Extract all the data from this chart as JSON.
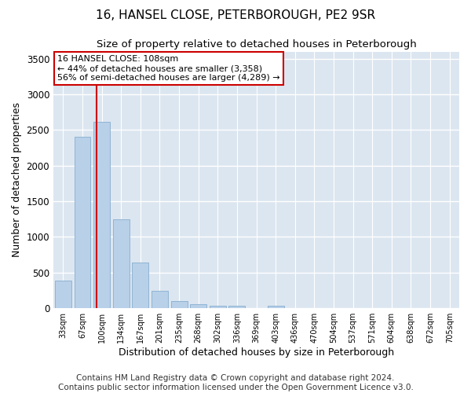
{
  "title": "16, HANSEL CLOSE, PETERBOROUGH, PE2 9SR",
  "subtitle": "Size of property relative to detached houses in Peterborough",
  "xlabel": "Distribution of detached houses by size in Peterborough",
  "ylabel": "Number of detached properties",
  "categories": [
    "33sqm",
    "67sqm",
    "100sqm",
    "134sqm",
    "167sqm",
    "201sqm",
    "235sqm",
    "268sqm",
    "302sqm",
    "336sqm",
    "369sqm",
    "403sqm",
    "436sqm",
    "470sqm",
    "504sqm",
    "537sqm",
    "571sqm",
    "604sqm",
    "638sqm",
    "672sqm",
    "705sqm"
  ],
  "values": [
    390,
    2400,
    2610,
    1250,
    640,
    250,
    105,
    55,
    40,
    30,
    0,
    30,
    0,
    0,
    0,
    0,
    0,
    0,
    0,
    0,
    0
  ],
  "bar_color": "#b8d0e8",
  "bar_edge_color": "#90b4d4",
  "annotation_line0": "16 HANSEL CLOSE: 108sqm",
  "annotation_line1": "← 44% of detached houses are smaller (3,358)",
  "annotation_line2": "56% of semi-detached houses are larger (4,289) →",
  "annotation_box_color": "#ffffff",
  "annotation_box_edge_color": "#cc0000",
  "vline_color": "#cc0000",
  "ylim": [
    0,
    3600
  ],
  "yticks": [
    0,
    500,
    1000,
    1500,
    2000,
    2500,
    3000,
    3500
  ],
  "background_color": "#dce6f0",
  "grid_color": "#ffffff",
  "footer": "Contains HM Land Registry data © Crown copyright and database right 2024.\nContains public sector information licensed under the Open Government Licence v3.0.",
  "title_fontsize": 11,
  "subtitle_fontsize": 9.5,
  "xlabel_fontsize": 9,
  "ylabel_fontsize": 9,
  "footer_fontsize": 7.5
}
